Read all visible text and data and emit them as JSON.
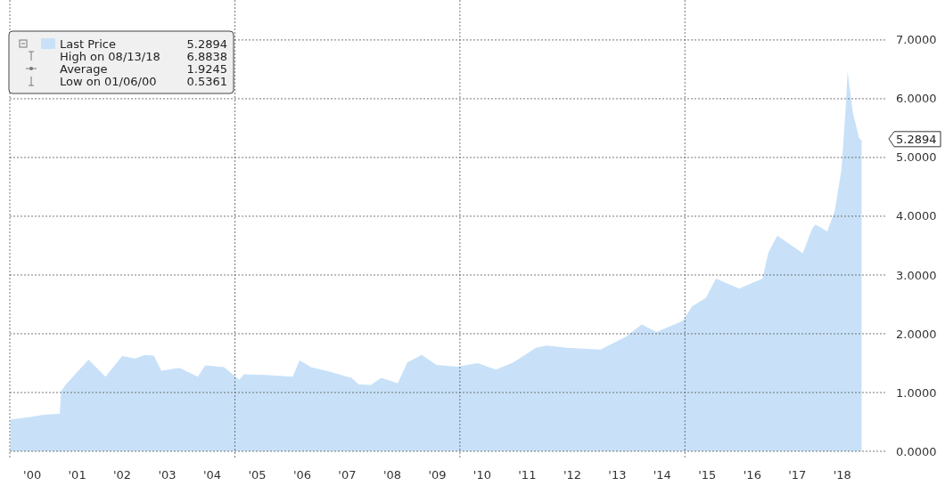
{
  "chart_data": {
    "type": "area",
    "legend": "top left",
    "x": [
      "2000-01-06",
      "2000-06-01",
      "2000-10-01",
      "2001-02-10",
      "2001-02-20",
      "2001-04-01",
      "2001-10-01",
      "2002-02-15",
      "2002-07-01",
      "2002-10-15",
      "2003-01-01",
      "2003-03-15",
      "2003-05-15",
      "2003-10-10",
      "2004-03-05",
      "2004-05-05",
      "2004-10-05",
      "2005-02-05",
      "2005-03-15",
      "2005-09-10",
      "2006-04-15",
      "2006-06-10",
      "2006-09-10",
      "2007-01-10",
      "2007-08-05",
      "2007-10-01",
      "2008-01-10",
      "2008-04-01",
      "2008-08-15",
      "2008-10-30",
      "2009-02-25",
      "2009-06-25",
      "2009-12-10",
      "2010-05-25",
      "2010-10-20",
      "2011-03-10",
      "2011-09-10",
      "2011-12-05",
      "2012-05-20",
      "2013-02-15",
      "2013-09-10",
      "2014-01-15",
      "2014-05-15",
      "2014-12-15",
      "2015-03-01",
      "2015-06-20",
      "2015-09-10",
      "2016-03-15",
      "2016-09-20",
      "2016-11-10",
      "2017-01-20",
      "2017-08-15",
      "2017-10-30",
      "2017-11-25",
      "2018-03-01",
      "2018-05-01",
      "2018-06-25",
      "2018-08-03",
      "2018-08-13",
      "2018-09-25",
      "2018-11-15",
      "2018-12-05"
    ],
    "series": [
      {
        "name": "Last Price",
        "color": "#c8e1f8",
        "values": [
          0.54,
          0.58,
          0.62,
          0.64,
          1.02,
          1.14,
          1.56,
          1.27,
          1.62,
          1.58,
          1.64,
          1.63,
          1.37,
          1.42,
          1.27,
          1.46,
          1.43,
          1.22,
          1.31,
          1.3,
          1.27,
          1.55,
          1.43,
          1.37,
          1.25,
          1.14,
          1.13,
          1.25,
          1.16,
          1.51,
          1.64,
          1.47,
          1.44,
          1.5,
          1.39,
          1.51,
          1.76,
          1.8,
          1.76,
          1.73,
          1.95,
          2.16,
          2.03,
          2.22,
          2.47,
          2.61,
          2.94,
          2.77,
          2.94,
          3.39,
          3.67,
          3.37,
          3.79,
          3.86,
          3.74,
          4.09,
          4.8,
          6.02,
          6.47,
          5.76,
          5.33,
          5.2894
        ]
      }
    ],
    "xlim": [
      "2000-01-01",
      "2019-06-15"
    ],
    "xticks": [
      {
        "value": "2000-07-01",
        "label": "'00"
      },
      {
        "value": "2001-07-01",
        "label": "'01"
      },
      {
        "value": "2002-07-01",
        "label": "'02"
      },
      {
        "value": "2003-07-01",
        "label": "'03"
      },
      {
        "value": "2004-07-01",
        "label": "'04"
      },
      {
        "value": "2005-07-01",
        "label": "'05"
      },
      {
        "value": "2006-07-01",
        "label": "'06"
      },
      {
        "value": "2007-07-01",
        "label": "'07"
      },
      {
        "value": "2008-07-01",
        "label": "'08"
      },
      {
        "value": "2009-07-01",
        "label": "'09"
      },
      {
        "value": "2010-07-01",
        "label": "'10"
      },
      {
        "value": "2011-07-01",
        "label": "'11"
      },
      {
        "value": "2012-07-01",
        "label": "'12"
      },
      {
        "value": "2013-07-01",
        "label": "'13"
      },
      {
        "value": "2014-07-01",
        "label": "'14"
      },
      {
        "value": "2015-07-01",
        "label": "'15"
      },
      {
        "value": "2016-07-01",
        "label": "'16"
      },
      {
        "value": "2017-07-01",
        "label": "'17"
      },
      {
        "value": "2018-07-01",
        "label": "'18"
      }
    ],
    "ylim": [
      0,
      7.68
    ],
    "yticks": [
      {
        "value": 0,
        "label": "0.0000"
      },
      {
        "value": 1,
        "label": "1.0000"
      },
      {
        "value": 2,
        "label": "2.0000"
      },
      {
        "value": 3,
        "label": "3.0000"
      },
      {
        "value": 4,
        "label": "4.0000"
      },
      {
        "value": 5,
        "label": "5.0000"
      },
      {
        "value": 6,
        "label": "6.0000"
      },
      {
        "value": 7,
        "label": "7.0000"
      }
    ],
    "grid": "y",
    "ref_lines": [
      {
        "axis": "x",
        "value": "2005-01-01",
        "color": "#555555",
        "line_style": "dotted"
      },
      {
        "axis": "x",
        "value": "2010-01-01",
        "color": "#555555",
        "line_style": "dotted"
      },
      {
        "axis": "x",
        "value": "2015-01-01",
        "color": "#555555",
        "line_style": "dotted"
      }
    ],
    "annotations": [
      {
        "text": "5.2894",
        "x": "2018-12-05",
        "y": 5.2894
      },
      "5.2894",
      "High on 08/13/18",
      "6.8838",
      "Average",
      "1.9245",
      "Low on 01/06/00",
      "0.5361"
    ]
  }
}
